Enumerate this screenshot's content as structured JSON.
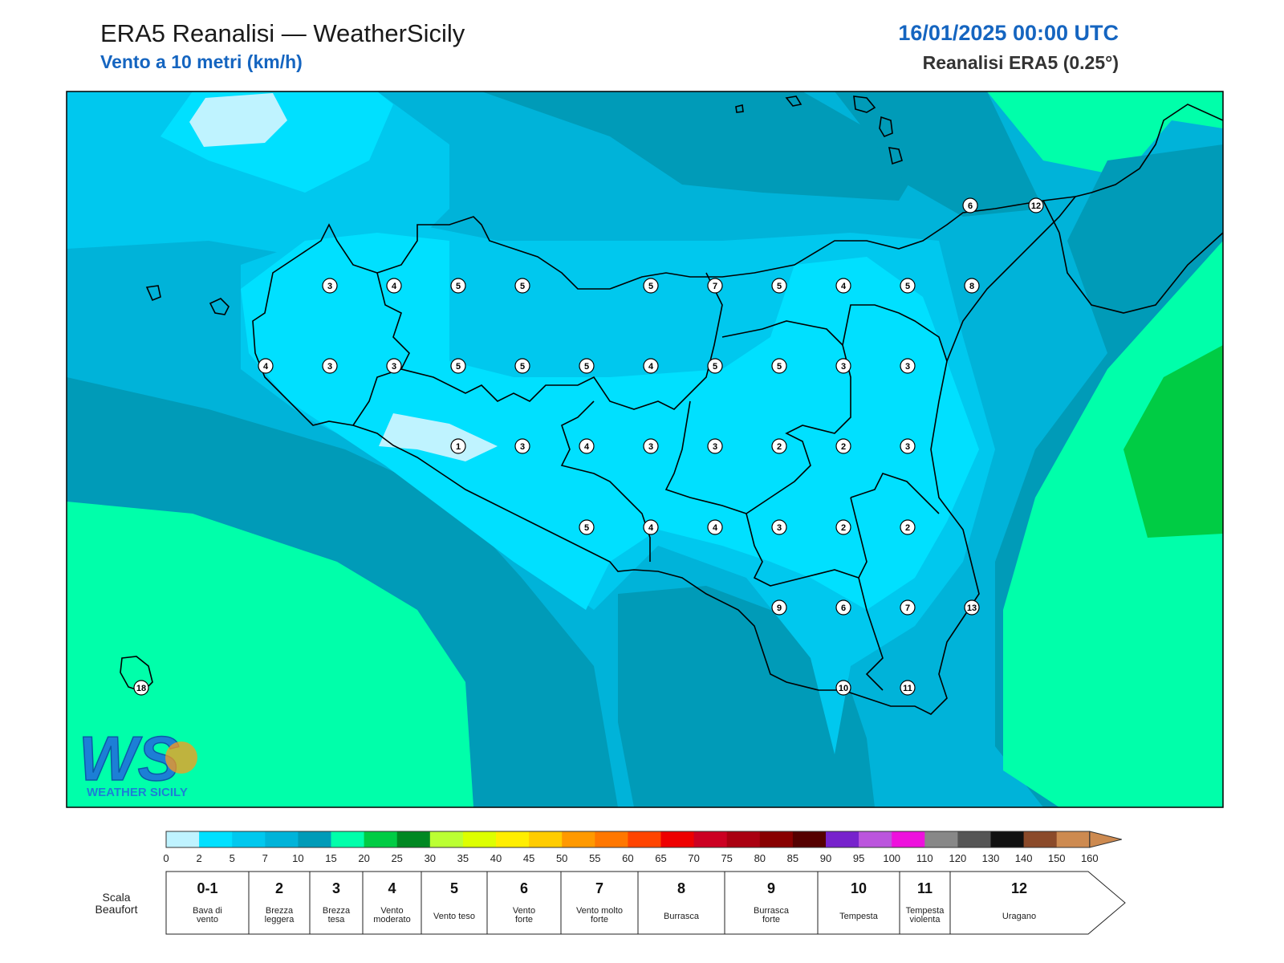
{
  "header": {
    "title": "ERA5 Reanalisi — WeatherSicily",
    "subtitle": "Vento a 10 metri (km/h)",
    "datetime": "16/01/2025 00:00 UTC",
    "source": "Reanalisi ERA5 (0.25°)"
  },
  "logo": {
    "text": "WEATHER SICILY",
    "initials": "WS"
  },
  "colorbar": {
    "ticks": [
      "0",
      "2",
      "5",
      "7",
      "10",
      "15",
      "20",
      "25",
      "30",
      "35",
      "40",
      "45",
      "50",
      "55",
      "60",
      "65",
      "70",
      "75",
      "80",
      "85",
      "90",
      "95",
      "100",
      "110",
      "120",
      "130",
      "140",
      "150",
      "160"
    ],
    "colors": [
      "#bff3ff",
      "#00e0ff",
      "#00c8ee",
      "#00b3d9",
      "#009bb8",
      "#00ffaa",
      "#00cc44",
      "#008822",
      "#bbff33",
      "#ddff00",
      "#ffee00",
      "#ffcc00",
      "#ff9900",
      "#ff7700",
      "#ff4400",
      "#ee0000",
      "#cc0022",
      "#aa0011",
      "#880000",
      "#550000",
      "#7722cc",
      "#bb55dd",
      "#ee11dd",
      "#888888",
      "#555555",
      "#111111",
      "#8b4a2a",
      "#cd8a50"
    ]
  },
  "beaufort": {
    "label": "Scala Beaufort",
    "classes": [
      {
        "num": "0-1",
        "name": "Bava di vento"
      },
      {
        "num": "2",
        "name": "Brezza leggera"
      },
      {
        "num": "3",
        "name": "Brezza tesa"
      },
      {
        "num": "4",
        "name": "Vento moderato"
      },
      {
        "num": "5",
        "name": "Vento teso"
      },
      {
        "num": "6",
        "name": "Vento forte"
      },
      {
        "num": "7",
        "name": "Vento molto forte"
      },
      {
        "num": "8",
        "name": "Burrasca"
      },
      {
        "num": "9",
        "name": "Burrasca forte"
      },
      {
        "num": "10",
        "name": "Tempesta"
      },
      {
        "num": "11",
        "name": "Tempesta violenta"
      },
      {
        "num": "12",
        "name": "Uragano"
      }
    ]
  },
  "map": {
    "background_color": "#00b3d9",
    "station_values": [
      [
        "3",
        "4",
        "5",
        "5",
        "5",
        "7",
        "5",
        "4",
        "5",
        "8"
      ],
      [
        "4",
        "3",
        "3",
        "5",
        "5",
        "5",
        "4",
        "5",
        "5",
        "3",
        "3"
      ],
      [
        "1",
        "3",
        "4",
        "3",
        "3",
        "2",
        "2",
        "3"
      ],
      [
        "5",
        "4",
        "4",
        "3",
        "2",
        "2"
      ],
      [
        "9",
        "6",
        "7",
        "13"
      ],
      [
        "10",
        "11"
      ]
    ],
    "extra_values": {
      "stromboli": "6",
      "calabria": "12",
      "pantelleria": "18"
    }
  }
}
